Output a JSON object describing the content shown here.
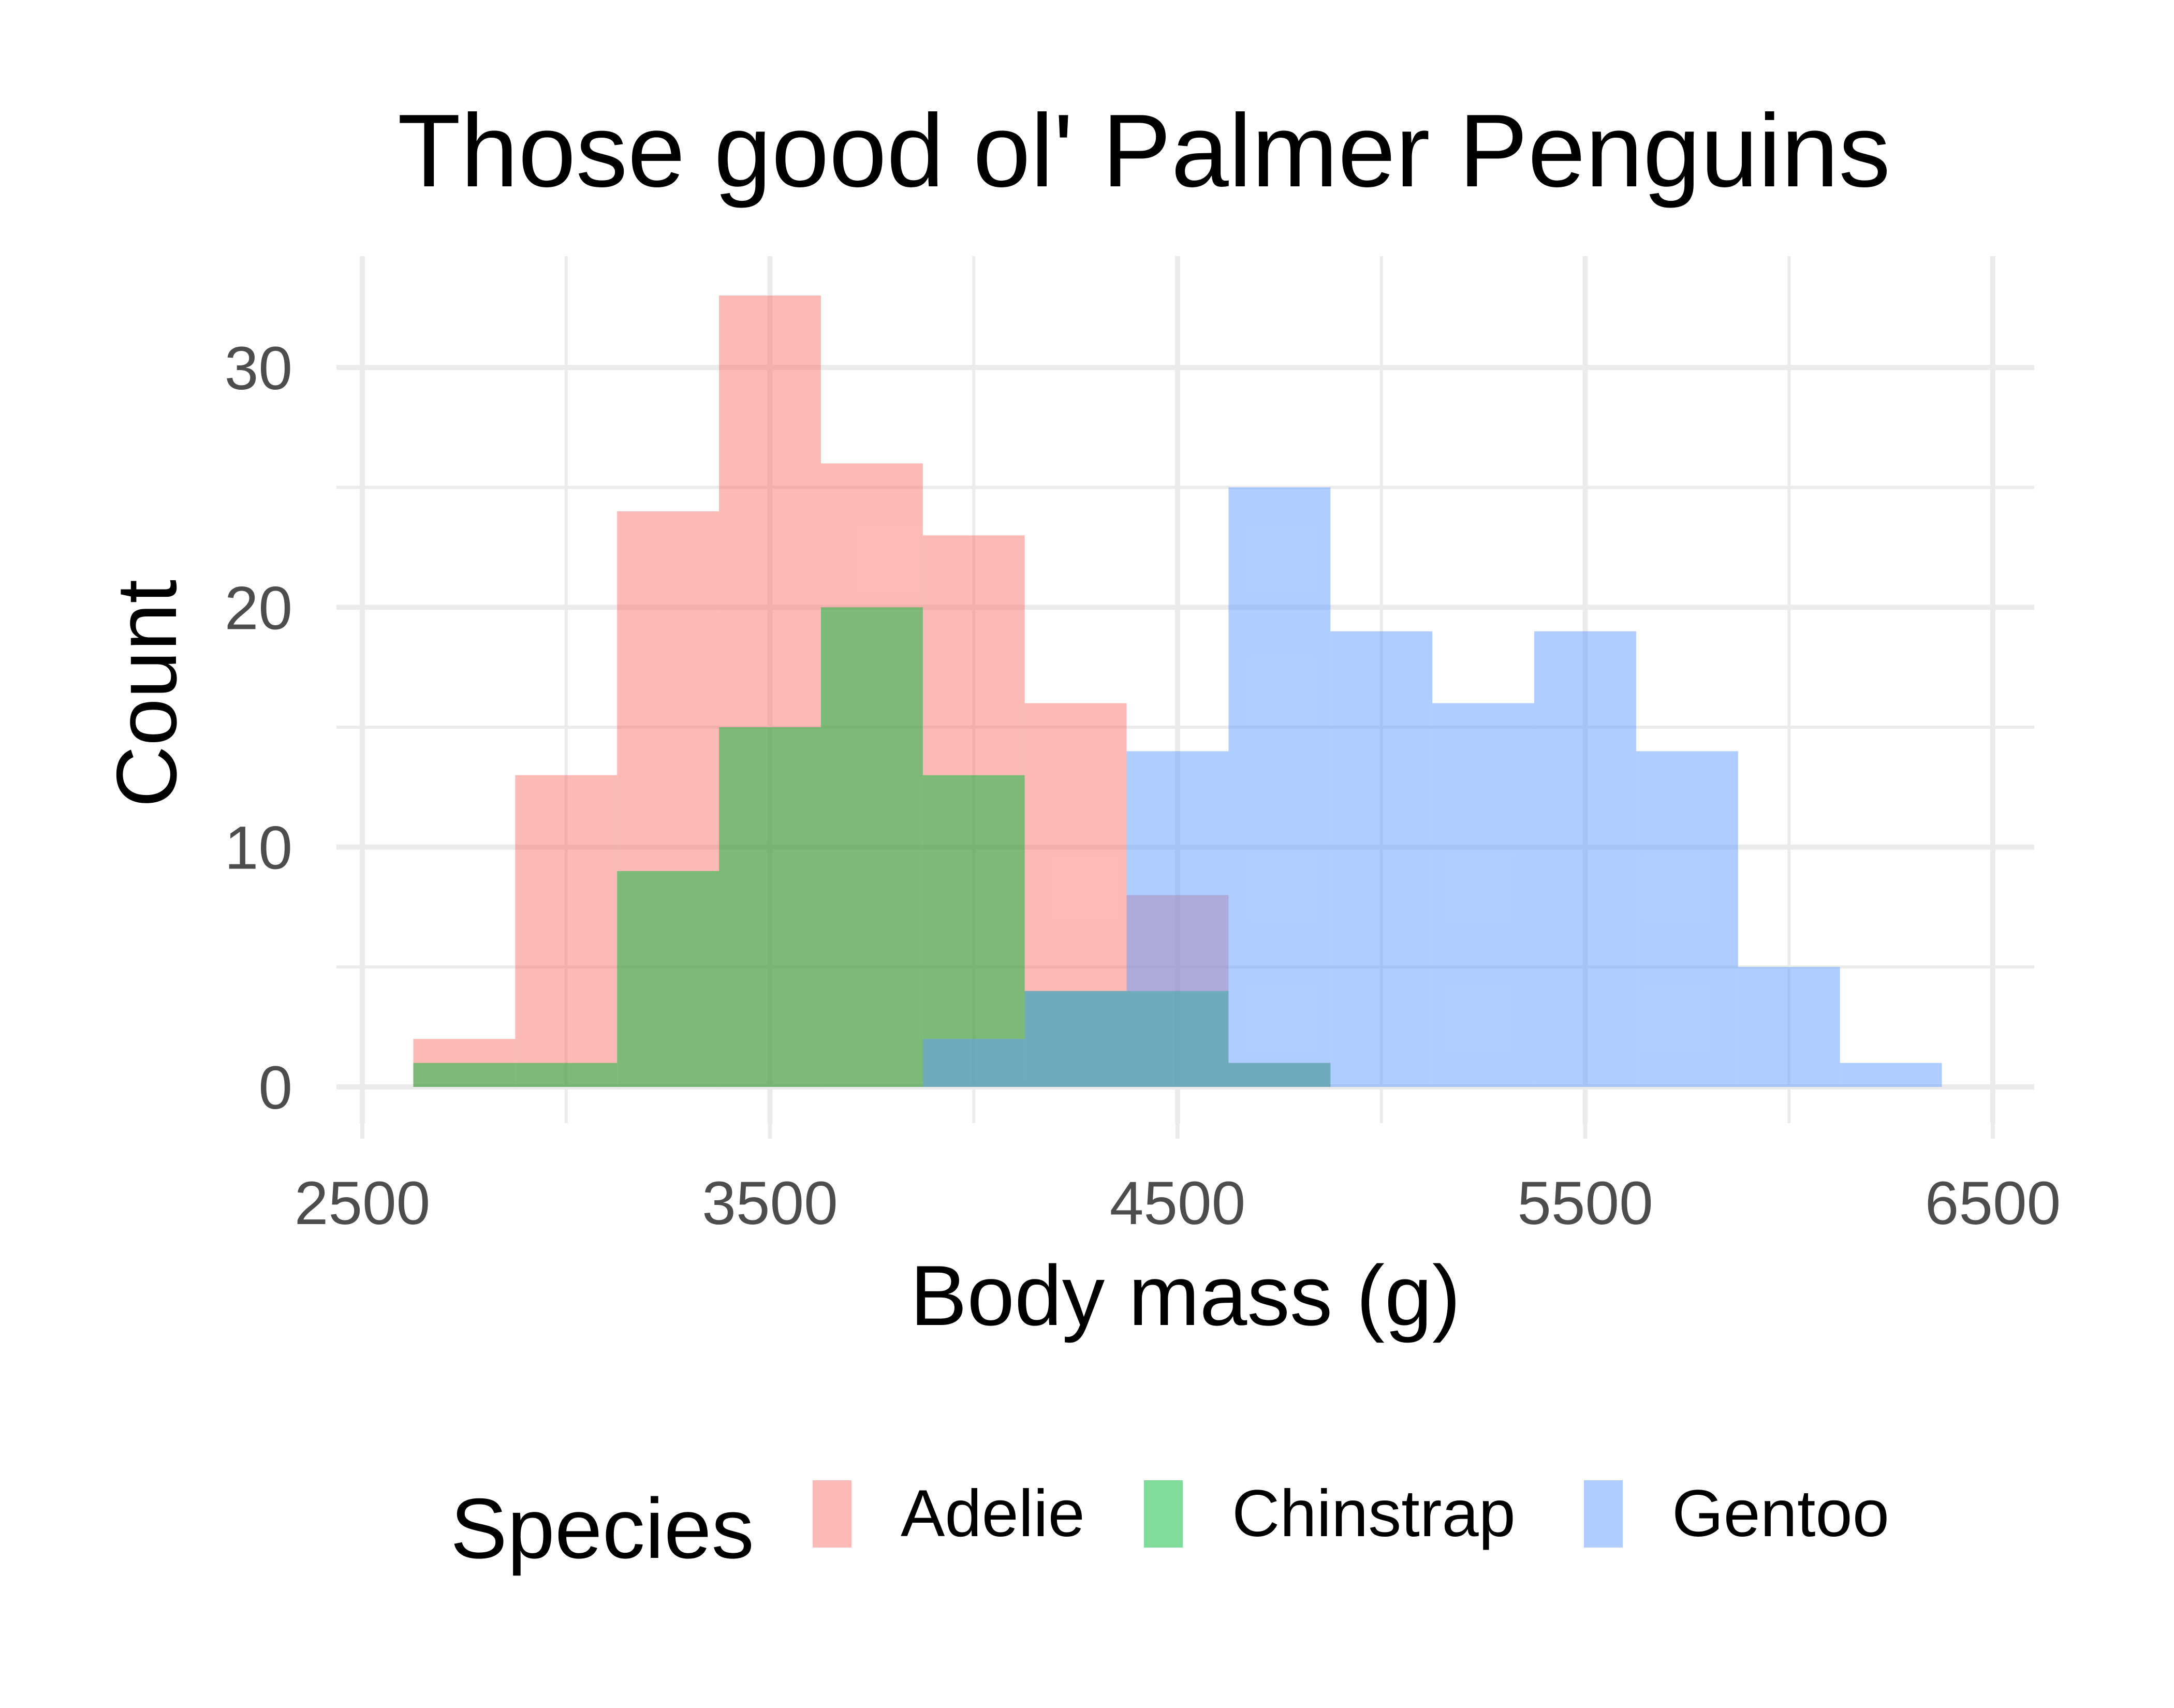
{
  "chart_data": {
    "type": "bar",
    "subtype": "overlaid-histogram",
    "title": "Those good ol' Palmer Penguins",
    "xlabel": "Body mass (g)",
    "ylabel": "Count",
    "xlim": [
      2500,
      6500
    ],
    "ylim": [
      0,
      33
    ],
    "x_ticks": [
      2500,
      3500,
      4500,
      5500,
      6500
    ],
    "y_ticks": [
      0,
      10,
      20,
      30
    ],
    "grid": true,
    "bin_width": 250,
    "legend": {
      "title": "Species",
      "position": "bottom",
      "items": [
        {
          "label": "Adelie",
          "color": "#f8766d"
        },
        {
          "label": "Chinstrap",
          "color": "#00ba38"
        },
        {
          "label": "Gentoo",
          "color": "#619cff"
        }
      ]
    },
    "series": [
      {
        "name": "Adelie",
        "color": "#f8766d",
        "bins": [
          {
            "x0": 2625,
            "x1": 2875,
            "count": 2
          },
          {
            "x0": 2875,
            "x1": 3125,
            "count": 13
          },
          {
            "x0": 3125,
            "x1": 3375,
            "count": 24
          },
          {
            "x0": 3375,
            "x1": 3625,
            "count": 33
          },
          {
            "x0": 3625,
            "x1": 3875,
            "count": 26
          },
          {
            "x0": 3875,
            "x1": 4125,
            "count": 23
          },
          {
            "x0": 4125,
            "x1": 4375,
            "count": 16
          },
          {
            "x0": 4375,
            "x1": 4625,
            "count": 8
          },
          {
            "x0": 4625,
            "x1": 4875,
            "count": 1
          }
        ]
      },
      {
        "name": "Chinstrap",
        "color": "#00ba38",
        "bins": [
          {
            "x0": 2625,
            "x1": 2875,
            "count": 1
          },
          {
            "x0": 2875,
            "x1": 3125,
            "count": 1
          },
          {
            "x0": 3125,
            "x1": 3375,
            "count": 9
          },
          {
            "x0": 3375,
            "x1": 3625,
            "count": 15
          },
          {
            "x0": 3625,
            "x1": 3875,
            "count": 20
          },
          {
            "x0": 3875,
            "x1": 4125,
            "count": 13
          },
          {
            "x0": 4125,
            "x1": 4375,
            "count": 4
          },
          {
            "x0": 4375,
            "x1": 4625,
            "count": 4
          },
          {
            "x0": 4625,
            "x1": 4875,
            "count": 1
          }
        ]
      },
      {
        "name": "Gentoo",
        "color": "#619cff",
        "bins": [
          {
            "x0": 3875,
            "x1": 4125,
            "count": 2
          },
          {
            "x0": 4125,
            "x1": 4375,
            "count": 4
          },
          {
            "x0": 4375,
            "x1": 4625,
            "count": 14
          },
          {
            "x0": 4625,
            "x1": 4875,
            "count": 25
          },
          {
            "x0": 4875,
            "x1": 5125,
            "count": 19
          },
          {
            "x0": 5125,
            "x1": 5375,
            "count": 16
          },
          {
            "x0": 5375,
            "x1": 5625,
            "count": 19
          },
          {
            "x0": 5625,
            "x1": 5875,
            "count": 14
          },
          {
            "x0": 5875,
            "x1": 6125,
            "count": 5
          },
          {
            "x0": 6125,
            "x1": 6375,
            "count": 1
          }
        ]
      }
    ]
  }
}
